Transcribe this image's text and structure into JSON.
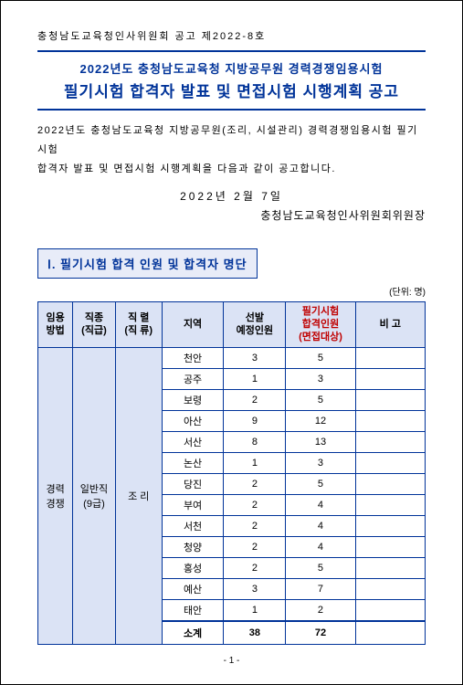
{
  "top_notice": "충청남도교육청인사위원회 공고 제2022-8호",
  "title_line1": "2022년도 충청남도교육청 지방공무원 경력경쟁임용시험",
  "title_line2": "필기시험 합격자 발표 및 면접시험 시행계획 공고",
  "intro_line1": "2022년도 충청남도교육청 지방공무원(조리, 시설관리) 경력경쟁임용시험 필기시험",
  "intro_line2": "합격자 발표 및 면접시험 시행계획을 다음과 같이 공고합니다.",
  "date_text": "2022년   2월   7일",
  "signer": "충청남도교육청인사위원회위원장",
  "section1_title": "Ⅰ. 필기시험 합격 인원 및 합격자 명단",
  "unit_label": "(단위: 명)",
  "headers": {
    "h1": "임용\n방법",
    "h2": "직종\n(직급)",
    "h3": "직  렬\n(직 류)",
    "h4": "지역",
    "h5": "선발\n예정인원",
    "h6": "필기시험\n합격인원\n(면접대상)",
    "h7": "비  고"
  },
  "group": {
    "method": "경력\n경쟁",
    "grade": "일반직\n(9급)",
    "series": "조  리"
  },
  "rows": [
    {
      "region": "천안",
      "plan": "3",
      "pass": "5",
      "note": ""
    },
    {
      "region": "공주",
      "plan": "1",
      "pass": "3",
      "note": ""
    },
    {
      "region": "보령",
      "plan": "2",
      "pass": "5",
      "note": ""
    },
    {
      "region": "아산",
      "plan": "9",
      "pass": "12",
      "note": ""
    },
    {
      "region": "서산",
      "plan": "8",
      "pass": "13",
      "note": ""
    },
    {
      "region": "논산",
      "plan": "1",
      "pass": "3",
      "note": ""
    },
    {
      "region": "당진",
      "plan": "2",
      "pass": "5",
      "note": ""
    },
    {
      "region": "부여",
      "plan": "2",
      "pass": "4",
      "note": ""
    },
    {
      "region": "서천",
      "plan": "2",
      "pass": "4",
      "note": ""
    },
    {
      "region": "청양",
      "plan": "2",
      "pass": "4",
      "note": ""
    },
    {
      "region": "홍성",
      "plan": "2",
      "pass": "5",
      "note": ""
    },
    {
      "region": "예산",
      "plan": "3",
      "pass": "7",
      "note": ""
    },
    {
      "region": "태안",
      "plan": "1",
      "pass": "2",
      "note": ""
    }
  ],
  "subtotal": {
    "label": "소계",
    "plan": "38",
    "pass": "72",
    "note": ""
  },
  "page_num": "- 1 -",
  "colors": {
    "accent": "#003399",
    "header_bg": "#dbe3f5",
    "highlight": "#c00000"
  }
}
